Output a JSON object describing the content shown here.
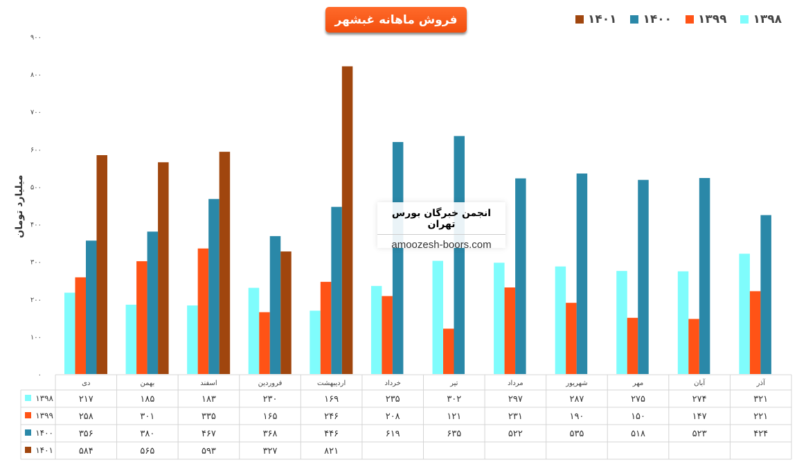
{
  "chart_data": {
    "type": "bar",
    "title": "فروش ماهانه غبشهر",
    "ylabel": "میلیارد تومان",
    "ylim": [
      0,
      900
    ],
    "yticks": [
      0,
      100,
      200,
      300,
      400,
      500,
      600,
      700,
      800,
      900
    ],
    "legend_position": "top-right",
    "categories": [
      "دی",
      "بهمن",
      "اسفند",
      "فروردین",
      "اردیبهشت",
      "خرداد",
      "تیر",
      "مرداد",
      "شهریور",
      "مهر",
      "آبان",
      "آذر"
    ],
    "series": [
      {
        "name": "۱۳۹۸",
        "color": "#7ffcfc",
        "values": [
          217,
          185,
          183,
          230,
          169,
          235,
          302,
          297,
          287,
          275,
          274,
          321
        ]
      },
      {
        "name": "۱۳۹۹",
        "color": "#ff5316",
        "values": [
          258,
          301,
          335,
          165,
          246,
          208,
          121,
          231,
          190,
          150,
          147,
          221
        ]
      },
      {
        "name": "۱۴۰۰",
        "color": "#2a88a8",
        "values": [
          356,
          380,
          467,
          368,
          446,
          619,
          635,
          522,
          535,
          518,
          523,
          424
        ]
      },
      {
        "name": "۱۴۰۱",
        "color": "#a0460e",
        "values": [
          584,
          565,
          593,
          327,
          821,
          null,
          null,
          null,
          null,
          null,
          null,
          null
        ]
      }
    ]
  },
  "watermark": {
    "name": "انجمن خبرگان بورس تهران",
    "url": "amoozesh-boors.com"
  }
}
